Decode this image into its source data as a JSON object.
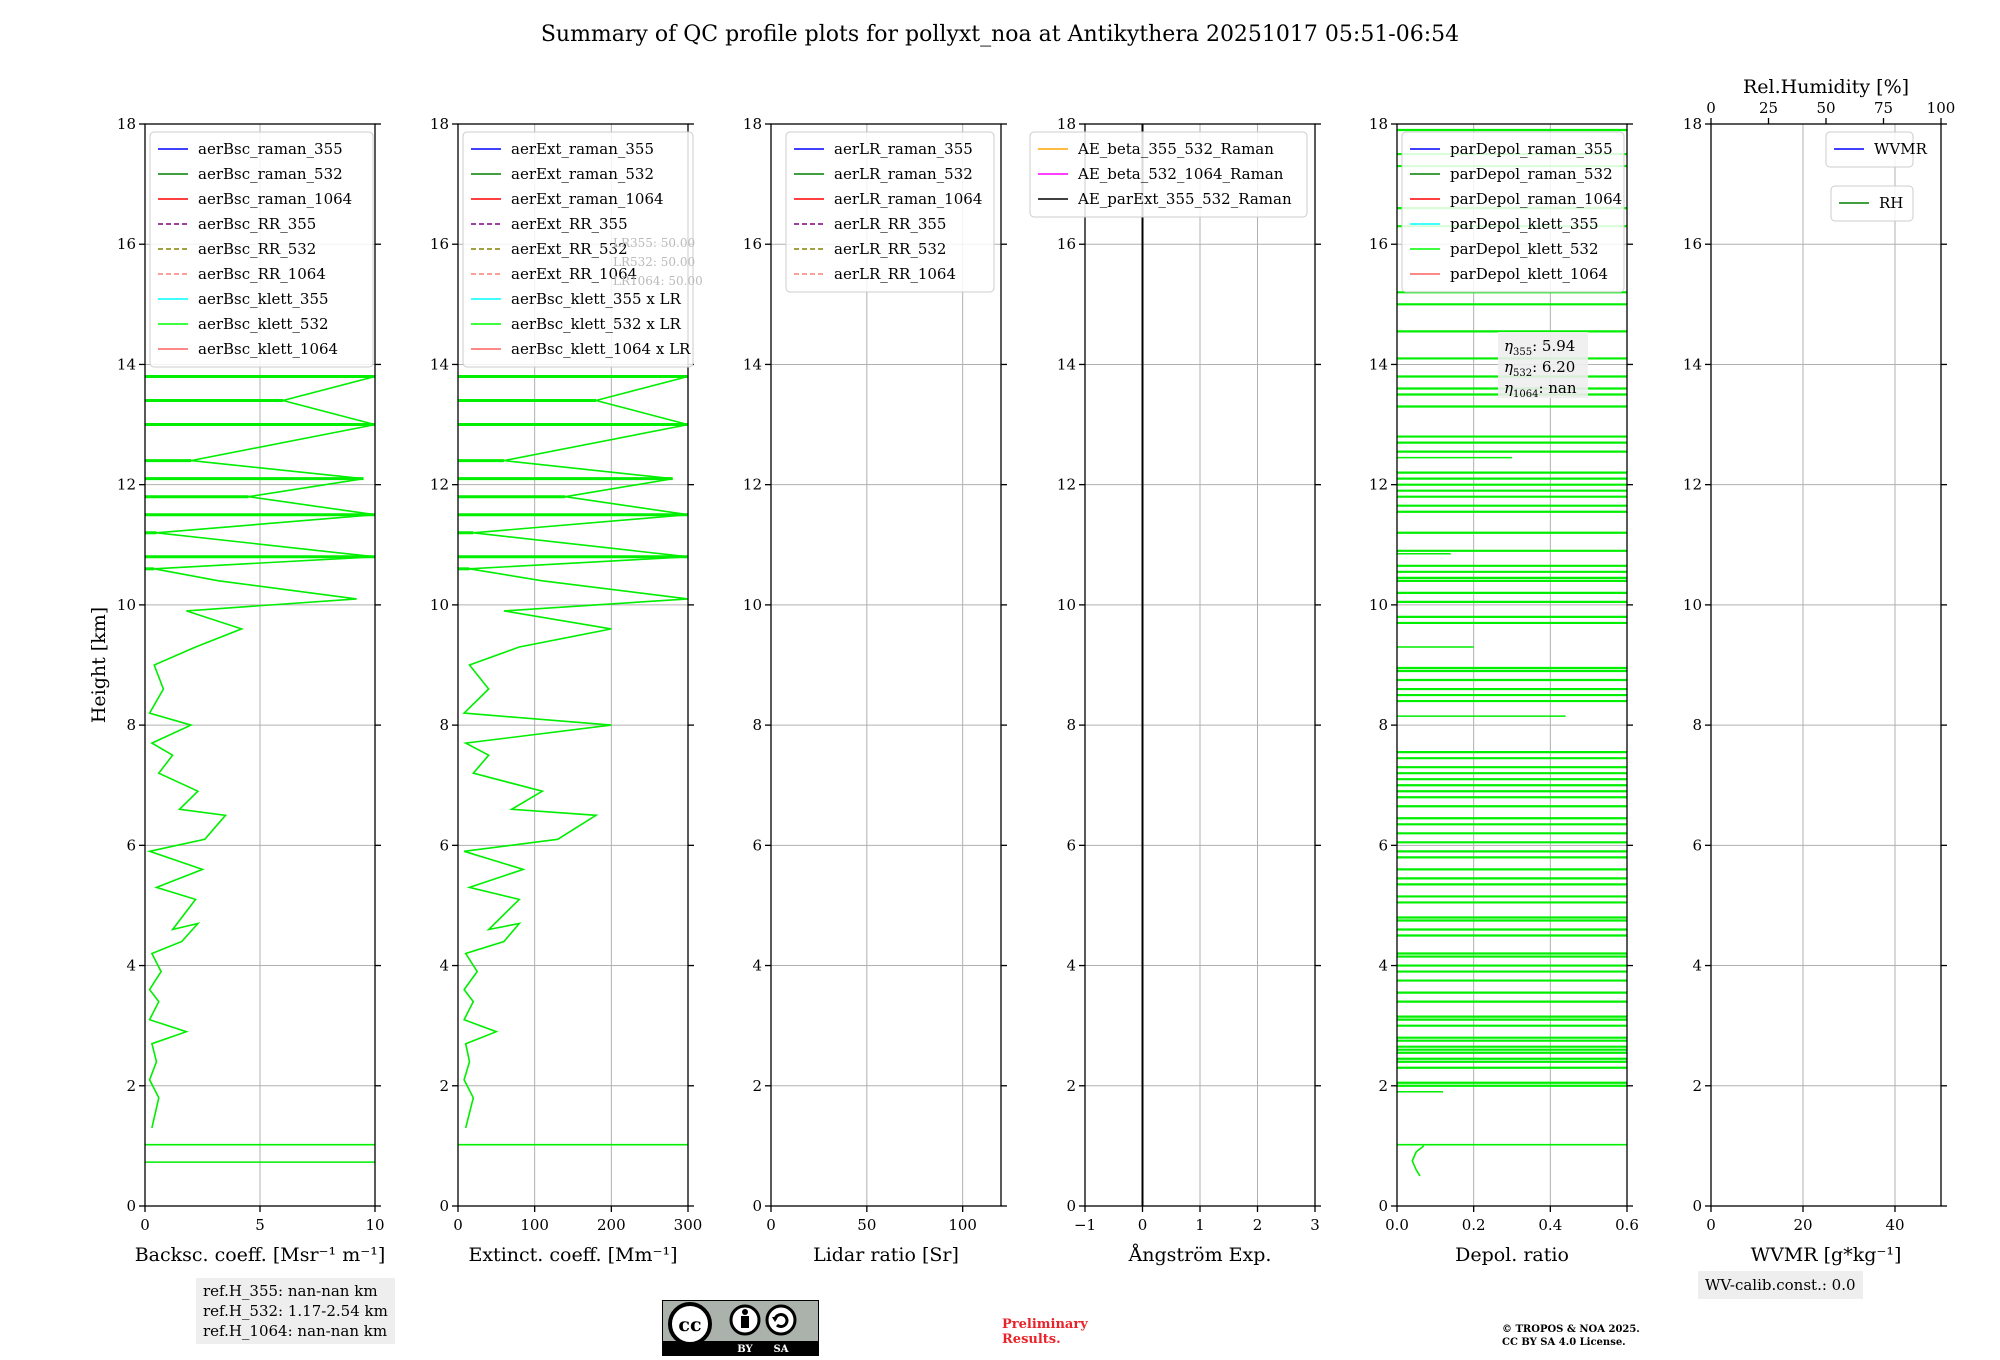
{
  "title": "Summary of QC profile plots for pollyxt_noa at Antikythera 20251017 05:51-06:54",
  "colors": {
    "profile": "#00ee00",
    "grid": "#b0b0b0",
    "blue": "#0000ff",
    "green": "#008000",
    "red": "#ff0000",
    "purple": "#800080",
    "olive": "#808000",
    "salmon": "#fa8072",
    "cyan": "#00ffff",
    "lime": "#00ff00",
    "lightred": "#ff6060",
    "orange": "#ffa500",
    "magenta": "#ff00ff",
    "black": "#000000"
  },
  "chart_data": [
    {
      "type": "line",
      "id": "bsc",
      "xlabel": "Backsc. coeff. [Msr⁻¹ m⁻¹]",
      "ylabel": "Height [km]",
      "xlim": [
        0,
        10
      ],
      "xticks": [
        0,
        5,
        10
      ],
      "ylim": [
        0,
        18
      ],
      "yticks": [
        0,
        2,
        4,
        6,
        8,
        10,
        12,
        14,
        16,
        18
      ],
      "legend_position": "top",
      "legend": [
        {
          "label": "aerBsc_raman_355",
          "color": "blue",
          "dash": false
        },
        {
          "label": "aerBsc_raman_532",
          "color": "green",
          "dash": false
        },
        {
          "label": "aerBsc_raman_1064",
          "color": "red",
          "dash": false
        },
        {
          "label": "aerBsc_RR_355",
          "color": "purple",
          "dash": true
        },
        {
          "label": "aerBsc_RR_532",
          "color": "olive",
          "dash": true
        },
        {
          "label": "aerBsc_RR_1064",
          "color": "salmon",
          "dash": true
        },
        {
          "label": "aerBsc_klett_355",
          "color": "cyan",
          "dash": false
        },
        {
          "label": "aerBsc_klett_532",
          "color": "lime",
          "dash": false
        },
        {
          "label": "aerBsc_klett_1064",
          "color": "lightred",
          "dash": false
        }
      ],
      "series": [
        {
          "name": "aerBsc_klett_532",
          "color": "profile",
          "points": [
            [
              0.3,
              1.3
            ],
            [
              0.6,
              1.8
            ],
            [
              0.2,
              2.1
            ],
            [
              0.5,
              2.4
            ],
            [
              0.3,
              2.7
            ],
            [
              1.8,
              2.9
            ],
            [
              0.2,
              3.1
            ],
            [
              0.6,
              3.4
            ],
            [
              0.2,
              3.6
            ],
            [
              0.7,
              3.9
            ],
            [
              0.3,
              4.2
            ],
            [
              1.6,
              4.4
            ],
            [
              2.3,
              4.7
            ],
            [
              1.2,
              4.6
            ],
            [
              2.2,
              5.1
            ],
            [
              0.5,
              5.3
            ],
            [
              2.5,
              5.6
            ],
            [
              0.2,
              5.9
            ],
            [
              2.6,
              6.1
            ],
            [
              3.5,
              6.5
            ],
            [
              1.5,
              6.6
            ],
            [
              2.3,
              6.9
            ],
            [
              0.6,
              7.2
            ],
            [
              1.2,
              7.5
            ],
            [
              0.3,
              7.7
            ],
            [
              2.0,
              8.0
            ],
            [
              0.2,
              8.2
            ],
            [
              0.8,
              8.6
            ],
            [
              0.4,
              9.0
            ],
            [
              2.2,
              9.3
            ],
            [
              4.2,
              9.6
            ],
            [
              1.8,
              9.9
            ],
            [
              9.2,
              10.1
            ],
            [
              3.2,
              10.4
            ],
            [
              0.4,
              10.6
            ],
            [
              10,
              10.8
            ],
            [
              0.5,
              11.2
            ],
            [
              10,
              11.5
            ],
            [
              4.5,
              11.8
            ],
            [
              9.5,
              12.1
            ],
            [
              2.0,
              12.4
            ],
            [
              10,
              13.0
            ],
            [
              6,
              13.4
            ],
            [
              10,
              13.8
            ]
          ]
        }
      ],
      "markers": [
        {
          "y": 1.02,
          "x": 10
        },
        {
          "y": 0.73,
          "x": 10
        }
      ]
    },
    {
      "type": "line",
      "id": "ext",
      "xlabel": "Extinct. coeff. [Mm⁻¹]",
      "xlim": [
        0,
        300
      ],
      "xticks": [
        0,
        100,
        200,
        300
      ],
      "ylim": [
        0,
        18
      ],
      "yticks": [
        0,
        2,
        4,
        6,
        8,
        10,
        12,
        14,
        16,
        18
      ],
      "legend_position": "top",
      "legend": [
        {
          "label": "aerExt_raman_355",
          "color": "blue",
          "dash": false
        },
        {
          "label": "aerExt_raman_532",
          "color": "green",
          "dash": false
        },
        {
          "label": "aerExt_raman_1064",
          "color": "red",
          "dash": false
        },
        {
          "label": "aerExt_RR_355",
          "color": "purple",
          "dash": true
        },
        {
          "label": "aerExt_RR_532",
          "color": "olive",
          "dash": true
        },
        {
          "label": "aerExt_RR_1064",
          "color": "salmon",
          "dash": true
        },
        {
          "label": "aerBsc_klett_355 x LR",
          "color": "cyan",
          "dash": false
        },
        {
          "label": "aerBsc_klett_532 x LR",
          "color": "lime",
          "dash": false
        },
        {
          "label": "aerBsc_klett_1064 x LR",
          "color": "lightred",
          "dash": false
        }
      ],
      "annotations": [
        "LR355: 50.00",
        "LR532: 50.00",
        "LR1064: 50.00"
      ],
      "series": [
        {
          "name": "aerBsc_klett_532 x LR",
          "color": "profile",
          "points": [
            [
              10,
              1.3
            ],
            [
              20,
              1.8
            ],
            [
              8,
              2.1
            ],
            [
              15,
              2.4
            ],
            [
              10,
              2.7
            ],
            [
              50,
              2.9
            ],
            [
              8,
              3.1
            ],
            [
              20,
              3.4
            ],
            [
              8,
              3.6
            ],
            [
              25,
              3.9
            ],
            [
              10,
              4.2
            ],
            [
              60,
              4.4
            ],
            [
              80,
              4.7
            ],
            [
              40,
              4.6
            ],
            [
              80,
              5.1
            ],
            [
              15,
              5.3
            ],
            [
              85,
              5.6
            ],
            [
              8,
              5.9
            ],
            [
              130,
              6.1
            ],
            [
              180,
              6.5
            ],
            [
              70,
              6.6
            ],
            [
              110,
              6.9
            ],
            [
              20,
              7.2
            ],
            [
              40,
              7.5
            ],
            [
              10,
              7.7
            ],
            [
              200,
              8.0
            ],
            [
              8,
              8.2
            ],
            [
              40,
              8.6
            ],
            [
              15,
              9.0
            ],
            [
              80,
              9.3
            ],
            [
              200,
              9.6
            ],
            [
              60,
              9.9
            ],
            [
              300,
              10.1
            ],
            [
              110,
              10.4
            ],
            [
              15,
              10.6
            ],
            [
              300,
              10.8
            ],
            [
              20,
              11.2
            ],
            [
              300,
              11.5
            ],
            [
              140,
              11.8
            ],
            [
              280,
              12.1
            ],
            [
              60,
              12.4
            ],
            [
              300,
              13.0
            ],
            [
              180,
              13.4
            ],
            [
              300,
              13.8
            ]
          ]
        }
      ],
      "markers": [
        {
          "y": 1.02,
          "x": 300
        }
      ]
    },
    {
      "type": "line",
      "id": "lr",
      "xlabel": "Lidar ratio [Sr]",
      "xlim": [
        0,
        120
      ],
      "xticks": [
        0,
        50,
        100
      ],
      "ylim": [
        0,
        18
      ],
      "yticks": [
        0,
        2,
        4,
        6,
        8,
        10,
        12,
        14,
        16,
        18
      ],
      "legend_position": "top",
      "legend": [
        {
          "label": "aerLR_raman_355",
          "color": "blue",
          "dash": false
        },
        {
          "label": "aerLR_raman_532",
          "color": "green",
          "dash": false
        },
        {
          "label": "aerLR_raman_1064",
          "color": "red",
          "dash": false
        },
        {
          "label": "aerLR_RR_355",
          "color": "purple",
          "dash": true
        },
        {
          "label": "aerLR_RR_532",
          "color": "olive",
          "dash": true
        },
        {
          "label": "aerLR_RR_1064",
          "color": "salmon",
          "dash": true
        }
      ],
      "series": []
    },
    {
      "type": "line",
      "id": "ae",
      "xlabel": "Ångström Exp.",
      "xlim": [
        -1,
        3
      ],
      "xticks": [
        -1,
        0,
        1,
        2,
        3
      ],
      "xtick_labels": [
        "−1",
        "0",
        "1",
        "2",
        "3"
      ],
      "ylim": [
        0,
        18
      ],
      "yticks": [
        0,
        2,
        4,
        6,
        8,
        10,
        12,
        14,
        16,
        18
      ],
      "legend_position": "top",
      "legend": [
        {
          "label": "AE_beta_355_532_Raman",
          "color": "orange",
          "dash": false
        },
        {
          "label": "AE_beta_532_1064_Raman",
          "color": "magenta",
          "dash": false
        },
        {
          "label": "AE_parExt_355_532_Raman",
          "color": "black",
          "dash": false
        }
      ],
      "vline": {
        "x": 0,
        "color": "black"
      },
      "series": []
    },
    {
      "type": "line",
      "id": "depol",
      "xlabel": "Depol. ratio",
      "xlim": [
        0,
        0.6
      ],
      "xticks": [
        0,
        0.2,
        0.4,
        0.6
      ],
      "xtick_labels": [
        "0.0",
        "0.2",
        "0.4",
        "0.6"
      ],
      "ylim": [
        0,
        18
      ],
      "yticks": [
        0,
        2,
        4,
        6,
        8,
        10,
        12,
        14,
        16,
        18
      ],
      "legend_position": "top",
      "legend": [
        {
          "label": "parDepol_raman_355",
          "color": "blue",
          "dash": false
        },
        {
          "label": "parDepol_raman_532",
          "color": "green",
          "dash": false
        },
        {
          "label": "parDepol_raman_1064",
          "color": "red",
          "dash": false
        },
        {
          "label": "parDepol_klett_355",
          "color": "cyan",
          "dash": false
        },
        {
          "label": "parDepol_klett_532",
          "color": "lime",
          "dash": false
        },
        {
          "label": "parDepol_klett_1064",
          "color": "lightred",
          "dash": false
        }
      ],
      "eta": [
        {
          "label": "η",
          "sub": "355",
          "value": ": 5.94"
        },
        {
          "label": "η",
          "sub": "532",
          "value": ": 6.20"
        },
        {
          "label": "η",
          "sub": "1064",
          "value": ": nan"
        }
      ],
      "series": [
        {
          "name": "parDepol_klett_532",
          "color": "profile",
          "points": [
            [
              0.06,
              0.5
            ],
            [
              0.05,
              0.6
            ],
            [
              0.04,
              0.75
            ],
            [
              0.05,
              0.9
            ],
            [
              0.07,
              1.0
            ]
          ]
        }
      ],
      "markers": [
        {
          "y": 1.02,
          "x": 0.6
        }
      ],
      "hlines": [
        2.0,
        2.05,
        2.3,
        2.4,
        2.45,
        2.55,
        2.6,
        2.65,
        2.75,
        2.8,
        3.0,
        3.1,
        3.15,
        3.4,
        3.55,
        3.75,
        3.9,
        4.0,
        4.15,
        4.2,
        4.5,
        4.6,
        4.75,
        4.8,
        5.05,
        5.15,
        5.35,
        5.45,
        5.6,
        5.8,
        5.9,
        6.05,
        6.2,
        6.35,
        6.45,
        6.65,
        6.8,
        6.9,
        7.0,
        7.1,
        7.2,
        7.3,
        7.45,
        7.55,
        8.4,
        8.5,
        8.6,
        8.75,
        8.9,
        8.95,
        9.7,
        9.8,
        10.05,
        10.2,
        10.4,
        10.45,
        10.55,
        10.65,
        10.9,
        11.2,
        11.55,
        11.65,
        11.8,
        11.9,
        12.0,
        12.1,
        12.2,
        12.55,
        12.7,
        12.8,
        13.3,
        13.5,
        13.6,
        13.8,
        14.1,
        14.55,
        15.0,
        15.2,
        16.3,
        16.6,
        17.3,
        17.5,
        17.9
      ],
      "hlines_short": [
        [
          9.3,
          0.2
        ],
        [
          8.15,
          0.44
        ],
        [
          10.85,
          0.14
        ],
        [
          12.45,
          0.3
        ],
        [
          1.9,
          0.12
        ]
      ]
    },
    {
      "type": "line",
      "id": "wv",
      "xlabel": "WVMR [g*kg⁻¹]",
      "xlim": [
        0,
        50
      ],
      "xticks": [
        0,
        20,
        40
      ],
      "ylim": [
        0,
        18
      ],
      "yticks": [
        0,
        2,
        4,
        6,
        8,
        10,
        12,
        14,
        16,
        18
      ],
      "top_xlabel": "Rel.Humidity [%]",
      "top_xlim": [
        0,
        100
      ],
      "top_xticks": [
        0,
        25,
        50,
        75,
        100
      ],
      "legend_position": "top-right",
      "legend": [
        {
          "label": "WVMR",
          "color": "blue",
          "dash": false
        }
      ],
      "legend2": [
        {
          "label": "RH",
          "color": "green",
          "dash": false
        }
      ],
      "series": []
    }
  ],
  "ref_heights": [
    "ref.H_355: nan-nan km",
    "ref.H_532: 1.17-2.54 km",
    "ref.H_1064: nan-nan km"
  ],
  "wv_calib": "WV-calib.const.: 0.0",
  "preliminary": [
    "Preliminary",
    "Results."
  ],
  "copyright": [
    "© TROPOS & NOA 2025.",
    "CC BY SA 4.0 License."
  ],
  "license_badge": {
    "cc": "cc",
    "by": "BY",
    "sa": "SA"
  }
}
